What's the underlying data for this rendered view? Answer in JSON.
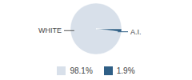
{
  "chart_data": {
    "type": "pie",
    "categories": [
      "WHITE",
      "A.I."
    ],
    "values": [
      98.1,
      1.9
    ],
    "colors": [
      "#d8e0ea",
      "#2f5f86"
    ],
    "value_labels": [
      "98.1%",
      "1.9%"
    ],
    "legend": "bottom"
  }
}
